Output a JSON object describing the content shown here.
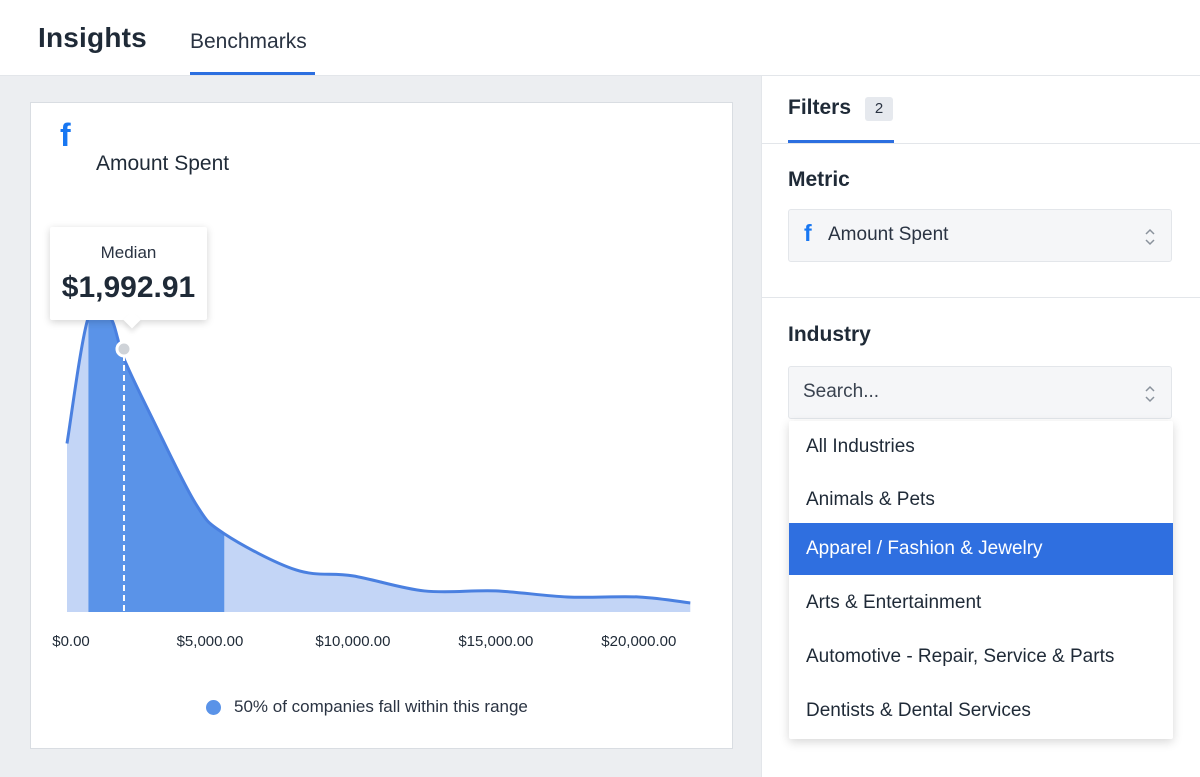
{
  "header": {
    "app_title": "Insights",
    "tabs": [
      {
        "label": "Benchmarks",
        "active": true
      }
    ]
  },
  "chart_card": {
    "title": "Amount Spent",
    "icon": "facebook-icon",
    "tooltip": {
      "label": "Median",
      "value": "$1,992.91"
    },
    "legend": "50% of companies fall within this range"
  },
  "chart_data": {
    "type": "area",
    "title": "Amount Spent",
    "xlabel": "",
    "ylabel": "",
    "xlim": [
      0,
      22000
    ],
    "x_ticks": [
      "$0.00",
      "$5,000.00",
      "$10,000.00",
      "$15,000.00",
      "$20,000.00"
    ],
    "x_tick_values": [
      0,
      5000,
      10000,
      15000,
      20000
    ],
    "median": 1992.91,
    "highlight_range": [
      750,
      5500
    ],
    "series": [
      {
        "x": [
          0,
          750,
          1500,
          2000,
          3000,
          4500,
          5500,
          8000,
          10000,
          12500,
          15000,
          17500,
          20000,
          21800
        ],
        "y": [
          0.56,
          0.98,
          0.98,
          0.84,
          0.64,
          0.36,
          0.26,
          0.14,
          0.12,
          0.07,
          0.07,
          0.05,
          0.05,
          0.03
        ]
      }
    ],
    "colors": {
      "fill_light": "#c3d5f6",
      "fill_dark": "#5a93e8",
      "line": "#4a80e0"
    },
    "grid": false
  },
  "filters": {
    "tab_label": "Filters",
    "count_badge": "2",
    "metric": {
      "label": "Metric",
      "value": "Amount Spent",
      "icon": "facebook-icon"
    },
    "industry": {
      "label": "Industry",
      "placeholder": "Search...",
      "options": [
        "All Industries",
        "Animals & Pets",
        "Apparel / Fashion & Jewelry",
        "Arts & Entertainment",
        "Automotive - Repair, Service & Parts",
        "Dentists & Dental Services"
      ],
      "selected_index": 2
    }
  },
  "colors": {
    "accent": "#2c6fe0",
    "facebook": "#1877f2"
  }
}
